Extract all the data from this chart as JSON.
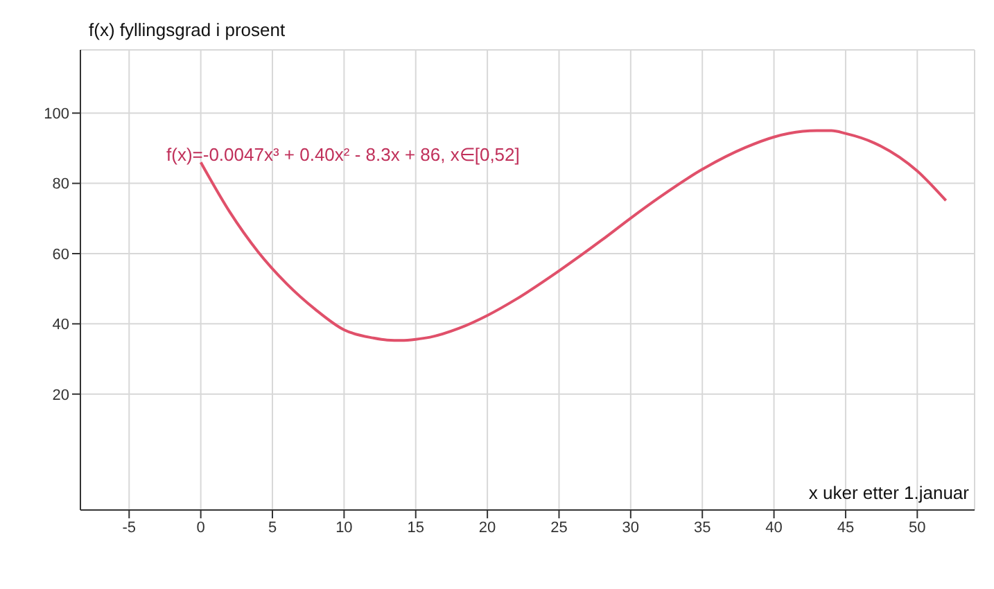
{
  "chart_data": {
    "type": "line",
    "xlabel": "x uker etter 1.januar",
    "ylabel": "f(x) fyllingsgrad i prosent",
    "annotations": [
      "f(x)=-0.0047x³ + 0.40x² - 8.3x + 86, x∈[0,52]"
    ],
    "x": [
      0,
      2,
      4,
      6,
      8,
      10,
      12,
      13,
      14,
      15,
      16,
      18,
      20,
      22,
      25,
      28,
      30,
      32,
      35,
      38,
      40,
      42,
      43,
      44,
      45,
      47,
      50,
      52
    ],
    "series": [
      {
        "color": "#e0506a",
        "values": [
          86,
          72,
          60.5,
          51.4,
          44.1,
          38.3,
          36,
          35.4,
          35.3,
          35.6,
          36.2,
          38.7,
          42.4,
          47,
          55.1,
          63.9,
          70.1,
          76,
          84,
          90.2,
          93.2,
          94.8,
          95,
          95,
          94.2,
          91.5,
          83.5,
          75.1
        ]
      }
    ],
    "xlim": [
      -8.4,
      54
    ],
    "ylim": [
      -13,
      118
    ],
    "xticks": [
      -5,
      0,
      5,
      10,
      15,
      20,
      25,
      30,
      35,
      40,
      45,
      50
    ],
    "yticks": [
      20,
      40,
      60,
      80,
      100
    ],
    "grid": true,
    "marker": "none",
    "line_style": "solid"
  }
}
